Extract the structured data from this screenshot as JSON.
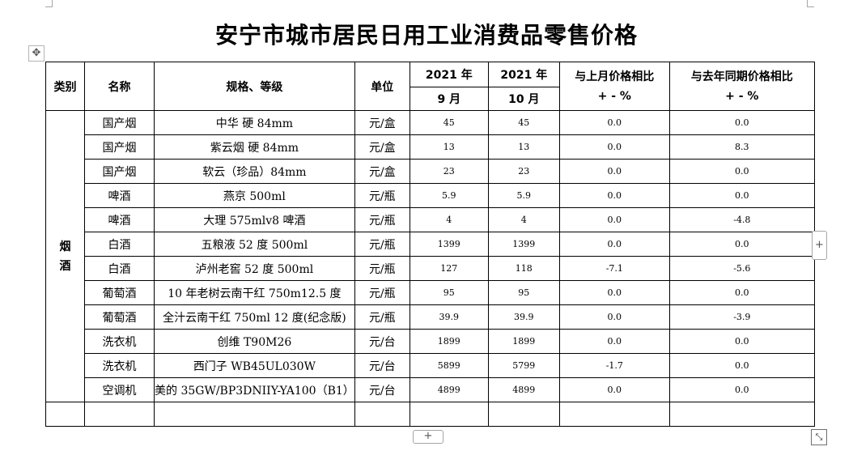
{
  "title": "安宁市城市居民日用工业消费品零售价格",
  "headers": {
    "category": "类别",
    "name": "名称",
    "spec": "规格、等级",
    "unit": "单位",
    "year1": "2021 年",
    "month1": "9 月",
    "year2": "2021 年",
    "month2": "10 月",
    "mom_line1": "与上月价格相比",
    "mom_line2": "+ - %",
    "yoy_line1": "与去年同期价格相比",
    "yoy_line2": "+ - %"
  },
  "category": {
    "char1": "烟",
    "char2": "酒"
  },
  "rows": [
    {
      "name": "国产烟",
      "spec": "中华 硬 84mm",
      "unit": "元/盒",
      "sep": "45",
      "oct": "45",
      "mom": "0.0",
      "yoy": "0.0"
    },
    {
      "name": "国产烟",
      "spec": "紫云烟 硬 84mm",
      "unit": "元/盒",
      "sep": "13",
      "oct": "13",
      "mom": "0.0",
      "yoy": "8.3"
    },
    {
      "name": "国产烟",
      "spec": "软云（珍品）84mm",
      "unit": "元/盒",
      "sep": "23",
      "oct": "23",
      "mom": "0.0",
      "yoy": "0.0"
    },
    {
      "name": "啤酒",
      "spec": "燕京 500ml",
      "unit": "元/瓶",
      "sep": "5.9",
      "oct": "5.9",
      "mom": "0.0",
      "yoy": "0.0"
    },
    {
      "name": "啤酒",
      "spec": "大理 575mlv8 啤酒",
      "unit": "元/瓶",
      "sep": "4",
      "oct": "4",
      "mom": "0.0",
      "yoy": "-4.8"
    },
    {
      "name": "白酒",
      "spec": "五粮液 52 度 500ml",
      "unit": "元/瓶",
      "sep": "1399",
      "oct": "1399",
      "mom": "0.0",
      "yoy": "0.0"
    },
    {
      "name": "白酒",
      "spec": "泸州老窖 52 度 500ml",
      "unit": "元/瓶",
      "sep": "127",
      "oct": "118",
      "mom": "-7.1",
      "yoy": "-5.6"
    },
    {
      "name": "葡萄酒",
      "spec": "10 年老树云南干红 750m12.5 度",
      "unit": "元/瓶",
      "sep": "95",
      "oct": "95",
      "mom": "0.0",
      "yoy": "0.0"
    },
    {
      "name": "葡萄酒",
      "spec": "全汁云南干红 750ml 12 度(纪念版)",
      "unit": "元/瓶",
      "sep": "39.9",
      "oct": "39.9",
      "mom": "0.0",
      "yoy": "-3.9"
    },
    {
      "name": "洗衣机",
      "spec": "创维 T90M26",
      "unit": "元/台",
      "sep": "1899",
      "oct": "1899",
      "mom": "0.0",
      "yoy": "0.0"
    },
    {
      "name": "洗衣机",
      "spec": "西门子 WB45UL030W",
      "unit": "元/台",
      "sep": "5899",
      "oct": "5799",
      "mom": "-1.7",
      "yoy": "0.0"
    },
    {
      "name": "空调机",
      "spec": "美的 35GW/BP3DNIIY-YA100（B1）",
      "unit": "元/台",
      "sep": "4899",
      "oct": "4899",
      "mom": "0.0",
      "yoy": "0.0"
    }
  ],
  "controls": {
    "move_glyph": "✥",
    "add_glyph": "+",
    "resize_glyph": "⤡"
  }
}
